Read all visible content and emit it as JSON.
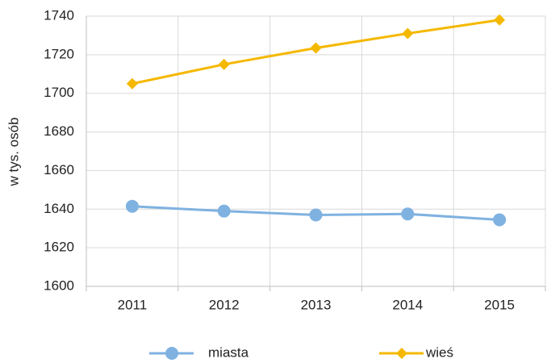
{
  "chart_data": {
    "type": "line",
    "y_label": "w tys. osób",
    "categories": [
      "2011",
      "2012",
      "2013",
      "2014",
      "2015"
    ],
    "series": [
      {
        "name": "miasta",
        "color": "#7fb2e0",
        "marker": "circle",
        "values": [
          1641.5,
          1639,
          1637,
          1637.5,
          1634.5
        ]
      },
      {
        "name": "wieś",
        "color": "#f5b800",
        "marker": "diamond",
        "values": [
          1705,
          1715,
          1723.5,
          1731,
          1738
        ]
      }
    ],
    "ylim": [
      1600,
      1740
    ],
    "yticks": [
      1600,
      1620,
      1640,
      1660,
      1680,
      1700,
      1720,
      1740
    ],
    "grid": true,
    "legend": "bottom"
  }
}
